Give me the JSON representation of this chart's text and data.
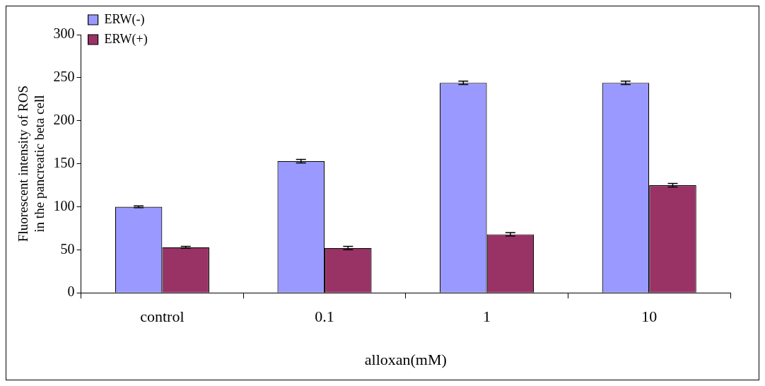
{
  "chart_data": {
    "type": "bar",
    "xlabel": "alloxan(mM)",
    "ylabel": "Fluorescent intensity of ROS in the pancreatic beta cell",
    "categories": [
      "control",
      "0.1",
      "1",
      "10"
    ],
    "series": [
      {
        "name": "ERW(-)",
        "color": "#9999ff",
        "values": [
          100,
          153,
          244,
          244
        ],
        "errors": [
          1,
          2,
          2,
          2
        ]
      },
      {
        "name": "ERW(+)",
        "color": "#993366",
        "values": [
          53,
          52,
          68,
          125
        ],
        "errors": [
          1,
          2,
          2,
          2
        ]
      }
    ],
    "ylim": [
      0,
      300
    ],
    "yticks": [
      0,
      50,
      100,
      150,
      200,
      250,
      300
    ],
    "grid": false,
    "legend": "top left"
  }
}
